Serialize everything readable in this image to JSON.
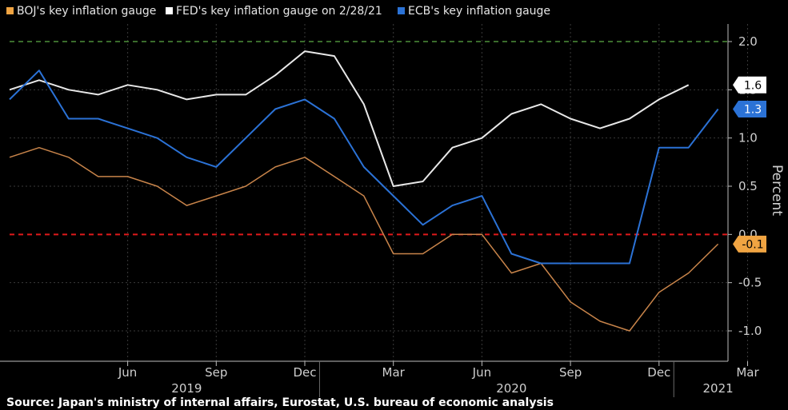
{
  "chart_data": {
    "type": "line",
    "legend_placement": "top-left",
    "ylabel": "Percent",
    "source": "Source: Japan's ministry of internal affairs, Eurostat, U.S. bureau of economic analysis",
    "x": [
      "2019-02",
      "2019-03",
      "2019-04",
      "2019-05",
      "2019-06",
      "2019-07",
      "2019-08",
      "2019-09",
      "2019-10",
      "2019-11",
      "2019-12",
      "2020-01",
      "2020-02",
      "2020-03",
      "2020-04",
      "2020-05",
      "2020-06",
      "2020-07",
      "2020-08",
      "2020-09",
      "2020-10",
      "2020-11",
      "2020-12",
      "2021-01",
      "2021-02",
      "2021-03"
    ],
    "x_tick_labels": [
      "Jun",
      "Sep",
      "Dec",
      "Mar",
      "Jun",
      "Sep",
      "Dec",
      "Mar"
    ],
    "x_tick_dates": [
      "2019-06",
      "2019-09",
      "2019-12",
      "2020-03",
      "2020-06",
      "2020-09",
      "2020-12",
      "2021-03"
    ],
    "year_labels": [
      {
        "label": "2019",
        "date": "2019-08"
      },
      {
        "label": "2020",
        "date": "2020-07"
      },
      {
        "label": "2021",
        "date": "2021-02"
      }
    ],
    "y_ticks": [
      "2.0",
      "1.5",
      "1.0",
      "0.5",
      "0.0",
      "-0.5",
      "-1.0"
    ],
    "ylim": [
      -1.25,
      2.2
    ],
    "grid": true,
    "reference_lines": [
      {
        "value": 2.0,
        "color": "#4e8f3a"
      },
      {
        "value": 0.0,
        "color": "#e0191b"
      }
    ],
    "series": [
      {
        "name": "BOJ's key inflation gauge",
        "color": "#c8844a",
        "badge": "-0.1",
        "values": [
          0.8,
          0.9,
          0.8,
          0.6,
          0.6,
          0.5,
          0.3,
          0.4,
          0.5,
          0.7,
          0.8,
          0.6,
          0.4,
          -0.2,
          -0.2,
          0.0,
          0.0,
          -0.4,
          -0.3,
          -0.7,
          -0.9,
          -1.0,
          -0.6,
          -0.4,
          -0.1,
          null
        ]
      },
      {
        "name": "FED's key inflation gauge on 2/28/21",
        "color": "#e8e8e8",
        "badge": "1.6",
        "values": [
          1.5,
          1.6,
          1.5,
          1.45,
          1.55,
          1.5,
          1.4,
          1.45,
          1.45,
          1.65,
          1.9,
          1.85,
          1.35,
          0.5,
          0.55,
          0.9,
          1.0,
          1.25,
          1.35,
          1.2,
          1.1,
          1.2,
          1.4,
          1.55,
          null,
          null
        ]
      },
      {
        "name": "ECB's key inflation gauge",
        "color": "#2b72d6",
        "badge": "1.3",
        "values": [
          1.4,
          1.7,
          1.2,
          1.2,
          1.1,
          1.0,
          0.8,
          0.7,
          1.0,
          1.3,
          1.4,
          1.2,
          0.7,
          0.4,
          0.1,
          0.3,
          0.4,
          -0.2,
          -0.3,
          -0.3,
          -0.3,
          -0.3,
          0.9,
          0.9,
          1.3,
          null
        ]
      }
    ]
  }
}
